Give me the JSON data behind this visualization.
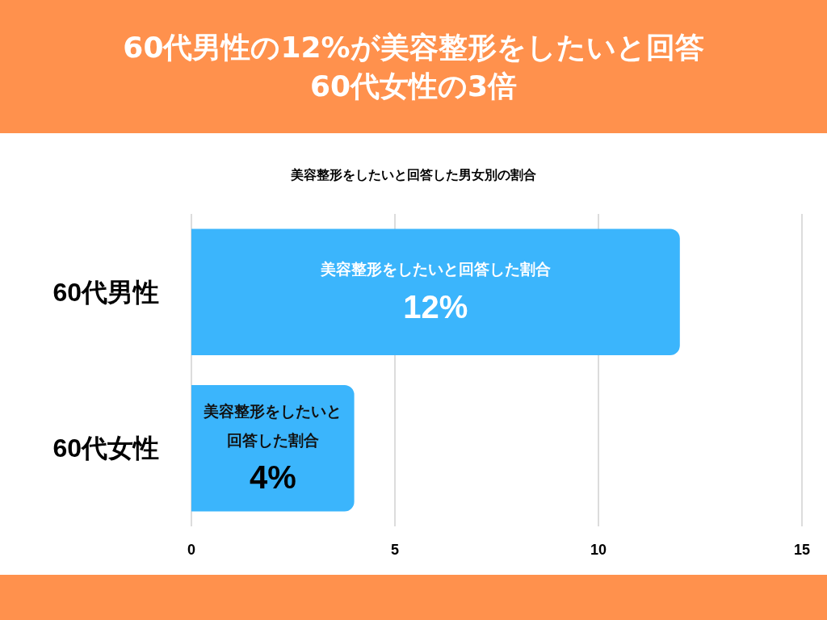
{
  "chart_data": {
    "type": "bar",
    "orientation": "horizontal",
    "title": "60代男性の12%が美容整形をしたいと回答\n60代女性の3倍",
    "subtitle": "美容整形をしたいと回答した男女別の割合",
    "categories": [
      "60代男性",
      "60代女性"
    ],
    "values": [
      12,
      4
    ],
    "value_labels": [
      "美容整形をしたいと回答した割合12%",
      "美容整形をしたいと回答した割合4%"
    ],
    "color": "#3bb5fc",
    "xlim": [
      0,
      15
    ],
    "xticks": [
      0,
      5,
      10,
      15
    ],
    "grid": "x"
  }
}
